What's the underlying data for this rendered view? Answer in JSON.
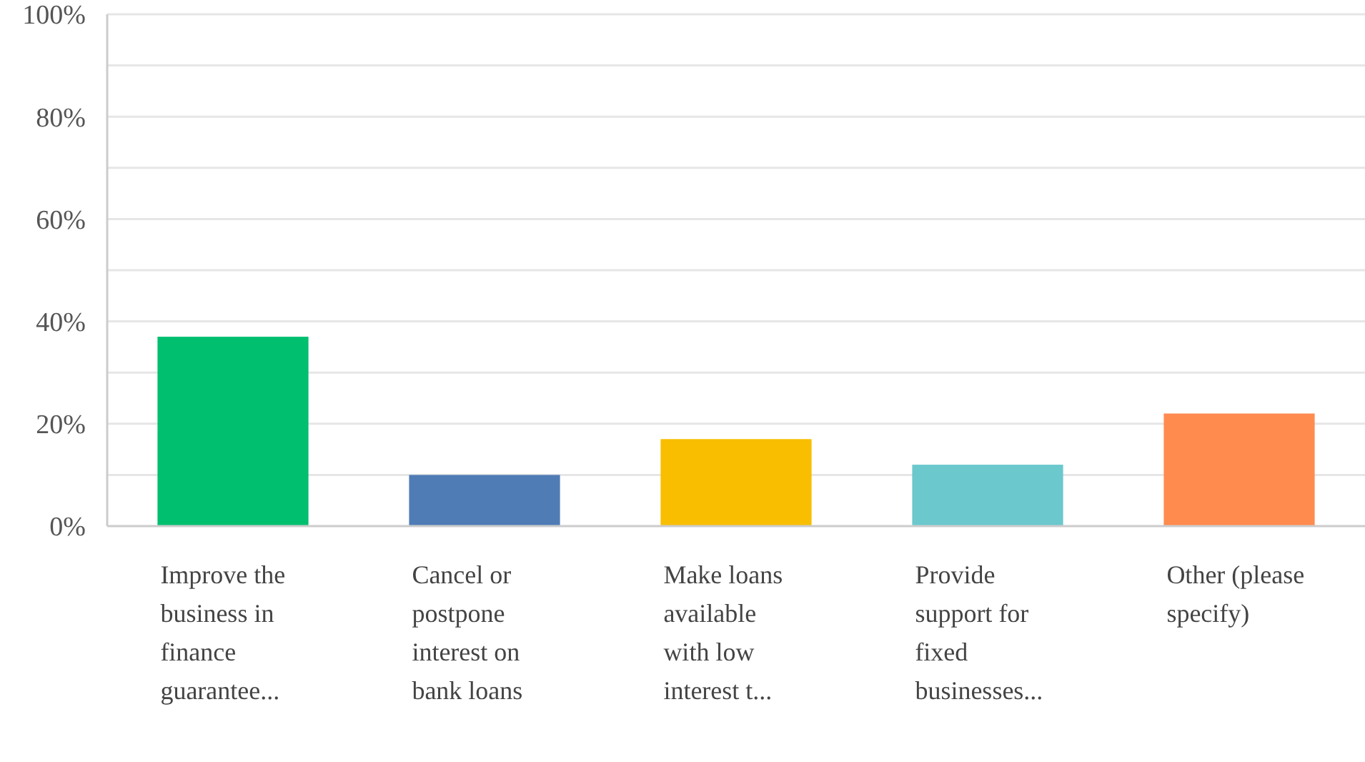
{
  "chart_data": {
    "type": "bar",
    "categories": [
      "Improve the business in finance guarantee...",
      "Cancel or postpone interest on bank loans",
      "Make loans available with low interest t...",
      "Provide support for fixed businesses...",
      "Other (please specify)"
    ],
    "values": [
      37,
      10,
      17,
      12,
      22
    ],
    "colors": [
      "#00bf6f",
      "#507cb6",
      "#f9be00",
      "#6bc8cd",
      "#ff8b4f"
    ],
    "ylim": [
      0,
      100
    ],
    "yticks": [
      {
        "value": 0,
        "label": "0%"
      },
      {
        "value": 10,
        "label": null
      },
      {
        "value": 20,
        "label": "20%"
      },
      {
        "value": 30,
        "label": null
      },
      {
        "value": 40,
        "label": "40%"
      },
      {
        "value": 50,
        "label": null
      },
      {
        "value": 60,
        "label": "60%"
      },
      {
        "value": 70,
        "label": null
      },
      {
        "value": 80,
        "label": "80%"
      },
      {
        "value": 90,
        "label": null
      },
      {
        "value": 100,
        "label": "100%"
      }
    ],
    "grid": "y"
  }
}
